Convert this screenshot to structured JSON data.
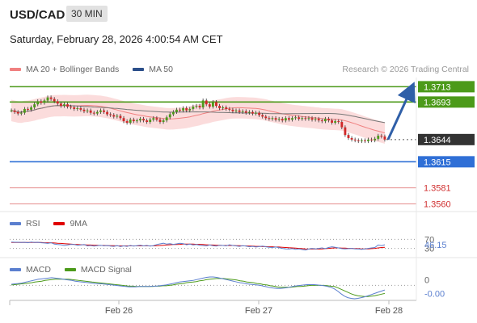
{
  "header": {
    "pair": "USD/CAD",
    "timeframe": "30 MIN",
    "datetime": "Saturday, February 28, 2026 4:00:54 AM CET"
  },
  "legend": {
    "bollinger": {
      "label": "MA 20 + Bollinger Bands",
      "color": "#f08080"
    },
    "ma50": {
      "label": "MA 50",
      "color": "#2c4f8a"
    },
    "credit": "Research © 2026 Trading Central"
  },
  "rsi_legend": {
    "rsi": {
      "label": "RSI",
      "color": "#5b7fcf"
    },
    "ma9": {
      "label": "9MA",
      "color": "#e00000"
    }
  },
  "macd_legend": {
    "macd": {
      "label": "MACD",
      "color": "#5b7fcf"
    },
    "signal": {
      "label": "MACD Signal",
      "color": "#4c9a1a"
    }
  },
  "chart_data": [
    {
      "type": "candlestick",
      "ylim": [
        1.355,
        1.3725
      ],
      "levels": [
        {
          "value": 1.3713,
          "label": "1.3713",
          "style": "green-box",
          "color": "#4c9a1a"
        },
        {
          "value": 1.3693,
          "label": "1.3693",
          "style": "green-box",
          "color": "#4c9a1a"
        },
        {
          "value": 1.3644,
          "label": "1.3644",
          "style": "current",
          "color": "#333333"
        },
        {
          "value": 1.3615,
          "label": "1.3615",
          "style": "blue-box",
          "color": "#2f6fd6"
        },
        {
          "value": 1.3581,
          "label": "1.3581",
          "style": "red-text",
          "color": "#d03030"
        },
        {
          "value": 1.356,
          "label": "1.3560",
          "style": "red-text",
          "color": "#d03030"
        }
      ],
      "x_ticks": [
        "Feb 26",
        "Feb 27",
        "Feb 28"
      ],
      "close": [
        1.3682,
        1.368,
        1.3678,
        1.3679,
        1.3684,
        1.3683,
        1.3686,
        1.369,
        1.3694,
        1.3692,
        1.3695,
        1.3699,
        1.3697,
        1.3694,
        1.3691,
        1.3688,
        1.369,
        1.3687,
        1.3686,
        1.3684,
        1.3685,
        1.3683,
        1.3681,
        1.3682,
        1.3679,
        1.3678,
        1.368,
        1.3682,
        1.368,
        1.3677,
        1.3676,
        1.3674,
        1.3675,
        1.3672,
        1.3668,
        1.3666,
        1.367,
        1.3668,
        1.3669,
        1.3671,
        1.3669,
        1.3667,
        1.367,
        1.3672,
        1.367,
        1.3667,
        1.3669,
        1.3673,
        1.3677,
        1.368,
        1.3683,
        1.3682,
        1.3685,
        1.3682,
        1.3684,
        1.3687,
        1.3688,
        1.3686,
        1.3695,
        1.369,
        1.3687,
        1.3693,
        1.3688,
        1.3685,
        1.3686,
        1.3684,
        1.3683,
        1.3681,
        1.3682,
        1.368,
        1.3681,
        1.3679,
        1.368,
        1.3678,
        1.3679,
        1.3676,
        1.3674,
        1.3672,
        1.3671,
        1.3672,
        1.367,
        1.3671,
        1.3669,
        1.3672,
        1.367,
        1.3672,
        1.3673,
        1.3671,
        1.3672,
        1.3671,
        1.3672,
        1.367,
        1.3671,
        1.3669,
        1.3668,
        1.3671,
        1.3669,
        1.3666,
        1.3668,
        1.3667,
        1.366,
        1.365,
        1.3646,
        1.3644,
        1.3643,
        1.3642,
        1.3643,
        1.3642,
        1.3644,
        1.3643,
        1.3645,
        1.3649,
        1.3648,
        1.3644
      ],
      "bands": {
        "upper_offset": 0.0014,
        "lower_offset": 0.0014
      }
    },
    {
      "type": "line",
      "name": "RSI",
      "ylim": [
        0,
        100
      ],
      "ticks": [
        {
          "value": 70,
          "label": "70"
        },
        {
          "value": 30,
          "label": "30"
        }
      ],
      "last_label": "46.15",
      "rsi": [
        58,
        57,
        57,
        56,
        57,
        55,
        58,
        56,
        57,
        55,
        54,
        52,
        55,
        49,
        47,
        46,
        43,
        45,
        48,
        47,
        44,
        45,
        47,
        41,
        43,
        40,
        42,
        44,
        41,
        43,
        40,
        39,
        42,
        38,
        41,
        39,
        43,
        40,
        42,
        44,
        41,
        43,
        40,
        42,
        47,
        50,
        53,
        49,
        51,
        48,
        50,
        53,
        51,
        46,
        49,
        45,
        47,
        44,
        43,
        41,
        45,
        42,
        40,
        44,
        43,
        41,
        46,
        43,
        41,
        39,
        42,
        40,
        37,
        39,
        36,
        38,
        40,
        37,
        35,
        34,
        36,
        33,
        30,
        28,
        27,
        29,
        26,
        28,
        25,
        23,
        27,
        30,
        28,
        30,
        32,
        29,
        34,
        37,
        35,
        32,
        29,
        28,
        29,
        30,
        28,
        27,
        26,
        28,
        30,
        32,
        34,
        45,
        42,
        46
      ],
      "ma9": [
        56,
        56,
        56,
        56,
        56,
        56,
        56,
        56,
        56,
        56,
        55,
        55,
        55,
        54,
        53,
        52,
        51,
        50,
        49,
        48,
        47,
        46,
        46,
        45,
        45,
        44,
        44,
        43,
        43,
        42,
        42,
        42,
        41,
        41,
        41,
        41,
        41,
        41,
        41,
        41,
        41,
        41,
        41,
        41,
        42,
        43,
        44,
        45,
        46,
        47,
        47,
        48,
        49,
        49,
        49,
        49,
        48,
        48,
        47,
        46,
        45,
        45,
        44,
        44,
        43,
        43,
        43,
        43,
        42,
        42,
        41,
        41,
        40,
        40,
        39,
        39,
        38,
        38,
        37,
        37,
        36,
        36,
        35,
        34,
        33,
        32,
        31,
        30,
        29,
        28,
        27,
        27,
        27,
        27,
        28,
        29,
        30,
        31,
        32,
        32,
        31,
        31,
        30,
        30,
        29,
        29,
        28,
        28,
        28,
        29,
        30,
        32,
        34,
        35
      ]
    },
    {
      "type": "line",
      "name": "MACD",
      "ticks": [
        {
          "value": 0,
          "label": "0"
        }
      ],
      "last_label": "-0.00",
      "macd": [
        0.3,
        0.4,
        0.5,
        0.6,
        0.8,
        1.0,
        1.2,
        1.4,
        1.6,
        1.7,
        1.8,
        1.9,
        2.0,
        1.9,
        1.8,
        1.7,
        1.5,
        1.4,
        1.3,
        1.1,
        1.0,
        0.9,
        0.8,
        0.7,
        0.6,
        0.5,
        0.4,
        0.4,
        0.3,
        0.2,
        0.1,
        0.0,
        -0.1,
        -0.2,
        -0.3,
        -0.4,
        -0.4,
        -0.4,
        -0.3,
        -0.3,
        -0.3,
        -0.3,
        -0.2,
        -0.2,
        -0.1,
        0.0,
        0.1,
        0.3,
        0.5,
        0.7,
        0.9,
        1.0,
        1.1,
        1.2,
        1.3,
        1.5,
        1.7,
        1.9,
        2.1,
        2.2,
        2.2,
        2.1,
        1.9,
        1.7,
        1.5,
        1.3,
        1.1,
        0.9,
        0.7,
        0.6,
        0.4,
        0.3,
        0.2,
        0.1,
        0.0,
        -0.2,
        -0.4,
        -0.6,
        -0.7,
        -0.8,
        -0.8,
        -0.7,
        -0.6,
        -0.4,
        -0.2,
        -0.1,
        0.0,
        0.1,
        0.2,
        0.2,
        0.2,
        0.1,
        0.0,
        -0.1,
        -0.3,
        -0.5,
        -0.9,
        -1.5,
        -2.2,
        -2.8,
        -3.2,
        -3.4,
        -3.5,
        -3.4,
        -3.2,
        -3.0,
        -2.7,
        -2.4,
        -2.1,
        -1.8,
        -1.5,
        -1.2
      ],
      "signal": [
        0.1,
        0.2,
        0.3,
        0.4,
        0.5,
        0.6,
        0.7,
        0.9,
        1.0,
        1.1,
        1.3,
        1.4,
        1.5,
        1.6,
        1.6,
        1.6,
        1.6,
        1.6,
        1.5,
        1.4,
        1.3,
        1.2,
        1.1,
        1.0,
        0.9,
        0.8,
        0.7,
        0.6,
        0.5,
        0.4,
        0.3,
        0.2,
        0.1,
        0.0,
        -0.1,
        -0.2,
        -0.2,
        -0.3,
        -0.3,
        -0.3,
        -0.3,
        -0.3,
        -0.3,
        -0.2,
        -0.2,
        -0.1,
        -0.1,
        0.0,
        0.1,
        0.3,
        0.4,
        0.5,
        0.7,
        0.8,
        0.9,
        1.0,
        1.2,
        1.3,
        1.5,
        1.6,
        1.7,
        1.8,
        1.8,
        1.8,
        1.7,
        1.6,
        1.5,
        1.4,
        1.2,
        1.1,
        0.9,
        0.8,
        0.7,
        0.5,
        0.4,
        0.2,
        0.1,
        -0.1,
        -0.2,
        -0.4,
        -0.5,
        -0.5,
        -0.5,
        -0.5,
        -0.4,
        -0.3,
        -0.3,
        -0.2,
        -0.1,
        0.0,
        0.0,
        0.0,
        0.0,
        0.0,
        -0.1,
        -0.2,
        -0.3,
        -0.6,
        -1.0,
        -1.4,
        -1.8,
        -2.2,
        -2.5,
        -2.7,
        -2.8,
        -2.9,
        -2.9,
        -2.8,
        -2.7,
        -2.5,
        -2.3,
        -2.1
      ]
    }
  ]
}
